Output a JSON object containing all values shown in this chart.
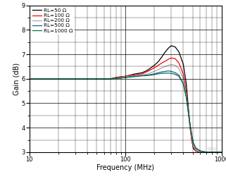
{
  "title": "",
  "xlabel": "Frequency (MHz)",
  "ylabel": "Gain (dB)",
  "xlim": [
    10,
    1000
  ],
  "ylim": [
    3,
    9
  ],
  "yticks": [
    3,
    4,
    5,
    6,
    7,
    8,
    9
  ],
  "background_color": "#ffffff",
  "series": [
    {
      "label": "RL=50 Ω",
      "color": "#000000",
      "lw": 0.9,
      "freq": [
        10,
        15,
        20,
        30,
        40,
        50,
        60,
        70,
        80,
        90,
        100,
        120,
        150,
        170,
        200,
        220,
        240,
        260,
        280,
        300,
        330,
        360,
        400,
        430,
        450,
        470,
        490,
        510,
        540,
        600,
        700,
        800,
        1000
      ],
      "gain": [
        6.0,
        6.0,
        6.0,
        6.0,
        6.0,
        6.0,
        6.0,
        6.0,
        6.05,
        6.08,
        6.1,
        6.18,
        6.25,
        6.35,
        6.55,
        6.7,
        6.9,
        7.1,
        7.25,
        7.35,
        7.3,
        7.1,
        6.6,
        5.8,
        4.9,
        4.1,
        3.5,
        3.15,
        3.05,
        3.0,
        3.0,
        3.0,
        3.0
      ]
    },
    {
      "label": "RL=100 Ω",
      "color": "#ff0000",
      "lw": 0.9,
      "freq": [
        10,
        15,
        20,
        30,
        40,
        50,
        60,
        70,
        80,
        90,
        100,
        120,
        150,
        170,
        200,
        220,
        240,
        260,
        280,
        300,
        330,
        360,
        400,
        430,
        450,
        470,
        490,
        510,
        540,
        600,
        700,
        800,
        1000
      ],
      "gain": [
        6.0,
        6.0,
        6.0,
        6.0,
        6.0,
        6.0,
        6.0,
        6.0,
        6.05,
        6.08,
        6.1,
        6.15,
        6.2,
        6.3,
        6.45,
        6.55,
        6.65,
        6.72,
        6.8,
        6.85,
        6.82,
        6.65,
        6.2,
        5.5,
        4.7,
        4.0,
        3.5,
        3.2,
        3.05,
        3.0,
        3.0,
        3.0,
        3.0
      ]
    },
    {
      "label": "RL=200 Ω",
      "color": "#aaaaaa",
      "lw": 0.9,
      "freq": [
        10,
        15,
        20,
        30,
        40,
        50,
        60,
        70,
        80,
        90,
        100,
        120,
        150,
        170,
        200,
        220,
        240,
        260,
        280,
        300,
        330,
        360,
        400,
        430,
        450,
        470,
        490,
        510,
        540,
        600,
        700,
        800,
        1000
      ],
      "gain": [
        6.0,
        6.0,
        6.0,
        6.0,
        6.0,
        6.0,
        6.0,
        6.0,
        6.02,
        6.05,
        6.08,
        6.12,
        6.15,
        6.2,
        6.3,
        6.38,
        6.45,
        6.5,
        6.55,
        6.58,
        6.55,
        6.42,
        6.0,
        5.35,
        4.7,
        4.1,
        3.6,
        3.25,
        3.1,
        3.0,
        3.0,
        3.0,
        3.0
      ]
    },
    {
      "label": "RL=500 Ω",
      "color": "#2255aa",
      "lw": 0.9,
      "freq": [
        10,
        15,
        20,
        30,
        40,
        50,
        60,
        70,
        80,
        90,
        100,
        120,
        150,
        170,
        200,
        220,
        240,
        260,
        280,
        300,
        330,
        360,
        400,
        430,
        450,
        470,
        490,
        510,
        540,
        600,
        700,
        800,
        1000
      ],
      "gain": [
        6.0,
        6.0,
        6.0,
        6.0,
        6.0,
        6.0,
        6.0,
        6.0,
        6.02,
        6.03,
        6.05,
        6.1,
        6.13,
        6.15,
        6.2,
        6.25,
        6.28,
        6.3,
        6.32,
        6.3,
        6.25,
        6.15,
        5.8,
        5.25,
        4.7,
        4.15,
        3.7,
        3.35,
        3.15,
        3.05,
        3.0,
        3.0,
        3.0
      ]
    },
    {
      "label": "RL=1000 Ω",
      "color": "#007744",
      "lw": 0.9,
      "freq": [
        10,
        15,
        20,
        30,
        40,
        50,
        60,
        70,
        80,
        90,
        100,
        120,
        150,
        170,
        200,
        220,
        240,
        260,
        280,
        300,
        330,
        360,
        400,
        430,
        450,
        470,
        490,
        510,
        540,
        600,
        700,
        800,
        1000
      ],
      "gain": [
        6.0,
        6.0,
        6.0,
        6.0,
        6.0,
        6.0,
        6.0,
        6.0,
        6.02,
        6.03,
        6.05,
        6.08,
        6.12,
        6.13,
        6.17,
        6.2,
        6.22,
        6.23,
        6.23,
        6.22,
        6.18,
        6.1,
        5.8,
        5.25,
        4.7,
        4.15,
        3.72,
        3.38,
        3.18,
        3.05,
        3.0,
        3.0,
        3.0
      ]
    }
  ],
  "legend_fontsize": 5.2,
  "axis_label_fontsize": 7.0,
  "tick_fontsize": 6.0,
  "watermark": "C022Z"
}
